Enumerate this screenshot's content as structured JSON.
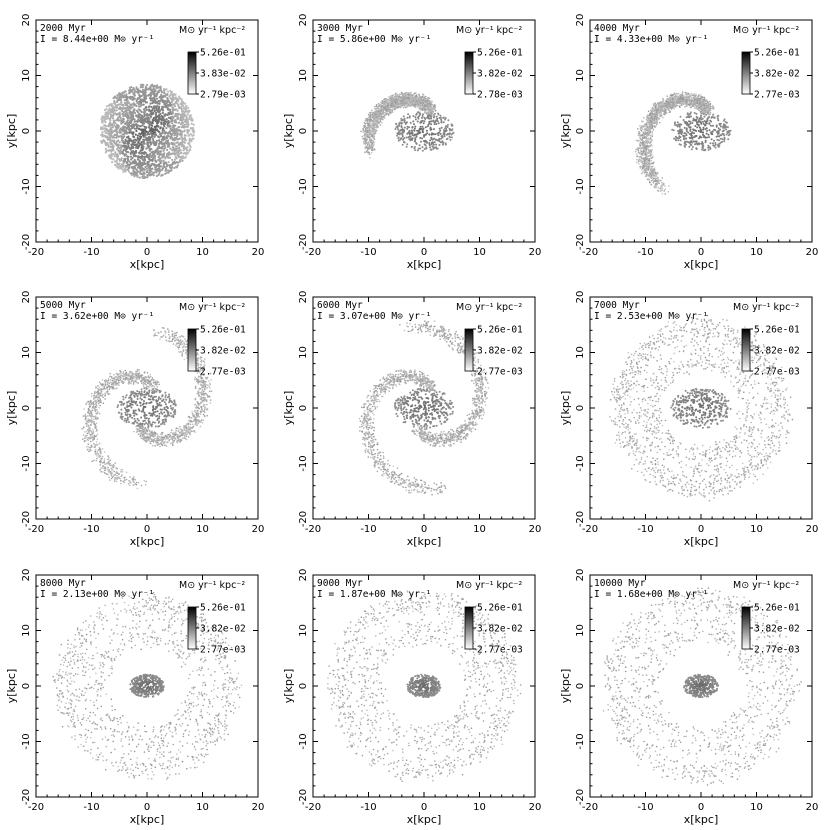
{
  "figure": {
    "xlabel": "x[kpc]",
    "ylabel": "y[kpc]",
    "xlim": [
      -20,
      20
    ],
    "ylim": [
      -20,
      20
    ],
    "xticks": [
      -20,
      -10,
      0,
      10,
      20
    ],
    "yticks": [
      -20,
      -10,
      0,
      10,
      20
    ],
    "colorbar_units": "M⊙ yr⁻¹ kpc⁻²",
    "sfr_symbol": "I",
    "sfr_units": "M⊙ yr⁻¹"
  },
  "chart_data": [
    {
      "type": "heatmap",
      "time_label": "2000 Myr",
      "sfr_text": "8.44e+00",
      "colorbar_ticks": [
        "5.26e-01",
        "3.83e-02",
        "2.79e-03"
      ],
      "morphology": "compact-spiral",
      "outer_radius_kpc": 8.5
    },
    {
      "type": "heatmap",
      "time_label": "3000 Myr",
      "sfr_text": "5.86e+00",
      "colorbar_ticks": [
        "5.26e-01",
        "3.82e-02",
        "2.78e-03"
      ],
      "morphology": "ring-spiral",
      "outer_radius_kpc": 10.5
    },
    {
      "type": "heatmap",
      "time_label": "4000 Myr",
      "sfr_text": "4.33e+00",
      "colorbar_ticks": [
        "5.26e-01",
        "3.82e-02",
        "2.77e-03"
      ],
      "morphology": "broken-ring",
      "outer_radius_kpc": 12.5
    },
    {
      "type": "heatmap",
      "time_label": "5000 Myr",
      "sfr_text": "3.62e+00",
      "colorbar_ticks": [
        "5.26e-01",
        "3.82e-02",
        "2.77e-03"
      ],
      "morphology": "spiral-arms",
      "outer_radius_kpc": 14
    },
    {
      "type": "heatmap",
      "time_label": "6000 Myr",
      "sfr_text": "3.07e+00",
      "colorbar_ticks": [
        "5.26e-01",
        "3.82e-02",
        "2.77e-03"
      ],
      "morphology": "spiral-arms",
      "outer_radius_kpc": 15
    },
    {
      "type": "heatmap",
      "time_label": "7000 Myr",
      "sfr_text": "2.53e+00",
      "colorbar_ticks": [
        "5.26e-01",
        "3.82e-02",
        "2.77e-03"
      ],
      "morphology": "wide-ring",
      "outer_radius_kpc": 16
    },
    {
      "type": "heatmap",
      "time_label": "8000 Myr",
      "sfr_text": "2.13e+00",
      "colorbar_ticks": [
        "5.26e-01",
        "3.82e-02",
        "2.77e-03"
      ],
      "morphology": "outer-ring-bar",
      "outer_radius_kpc": 16.5
    },
    {
      "type": "heatmap",
      "time_label": "9000 Myr",
      "sfr_text": "1.87e+00",
      "colorbar_ticks": [
        "5.26e-01",
        "3.82e-02",
        "2.77e-03"
      ],
      "morphology": "outer-ring-bar",
      "outer_radius_kpc": 17
    },
    {
      "type": "heatmap",
      "time_label": "10000 Myr",
      "sfr_text": "1.68e+00",
      "colorbar_ticks": [
        "5.26e-01",
        "3.82e-02",
        "2.77e-03"
      ],
      "morphology": "outer-ring-bar",
      "outer_radius_kpc": 17.5
    }
  ]
}
